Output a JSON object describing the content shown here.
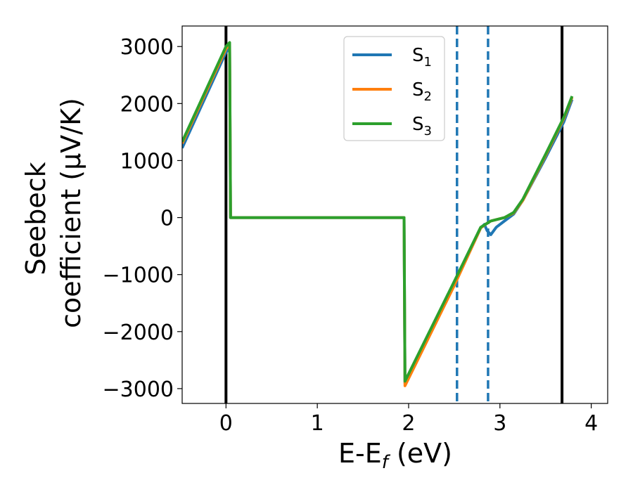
{
  "chart_data": {
    "type": "line",
    "title": "",
    "xlabel": {
      "main": "E-E",
      "sub": "f",
      "suffix": " (eV)"
    },
    "ylabel": {
      "line1": "Seebeck",
      "line2": "coefficient  (μV/K)"
    },
    "xlim": [
      -0.48,
      4.18
    ],
    "ylim": [
      -3260,
      3360
    ],
    "xticks": [
      0,
      1,
      2,
      3,
      4
    ],
    "xtick_labels": [
      "0",
      "1",
      "2",
      "3",
      "4"
    ],
    "yticks": [
      -3000,
      -2000,
      -1000,
      0,
      1000,
      2000,
      3000
    ],
    "ytick_labels": [
      "−3000",
      "−2000",
      "−1000",
      "0",
      "1000",
      "2000",
      "3000"
    ],
    "grid": false,
    "legend_position": "top-right",
    "series": [
      {
        "name": "S",
        "name_sub": "1",
        "color": "#1f77b4",
        "points": [
          [
            -0.48,
            1220
          ],
          [
            0.0,
            2900
          ],
          [
            0.04,
            2960
          ],
          [
            0.05,
            0
          ],
          [
            1.95,
            0
          ],
          [
            1.96,
            -2900
          ],
          [
            2.5,
            -1170
          ],
          [
            2.79,
            -180
          ],
          [
            2.83,
            -120
          ],
          [
            2.86,
            -230
          ],
          [
            2.9,
            -300
          ],
          [
            2.96,
            -170
          ],
          [
            3.05,
            -60
          ],
          [
            3.15,
            60
          ],
          [
            3.25,
            300
          ],
          [
            3.5,
            1050
          ],
          [
            3.7,
            1680
          ],
          [
            3.79,
            2070
          ]
        ]
      },
      {
        "name": "S",
        "name_sub": "2",
        "color": "#ff7f0e",
        "points": [
          [
            -0.48,
            1300
          ],
          [
            0.0,
            2960
          ],
          [
            0.04,
            3040
          ],
          [
            0.05,
            0
          ],
          [
            1.95,
            0
          ],
          [
            1.96,
            -2950
          ],
          [
            2.5,
            -1190
          ],
          [
            2.79,
            -180
          ],
          [
            2.85,
            -110
          ],
          [
            2.9,
            -60
          ],
          [
            3.05,
            0
          ],
          [
            3.15,
            80
          ],
          [
            3.25,
            300
          ],
          [
            3.5,
            1090
          ],
          [
            3.7,
            1740
          ],
          [
            3.79,
            2110
          ]
        ]
      },
      {
        "name": "S",
        "name_sub": "3",
        "color": "#2ca02c",
        "points": [
          [
            -0.48,
            1330
          ],
          [
            0.0,
            3000
          ],
          [
            0.04,
            3070
          ],
          [
            0.05,
            0
          ],
          [
            1.95,
            0
          ],
          [
            1.96,
            -2870
          ],
          [
            2.5,
            -1120
          ],
          [
            2.79,
            -170
          ],
          [
            2.85,
            -110
          ],
          [
            2.9,
            -60
          ],
          [
            3.05,
            0
          ],
          [
            3.15,
            90
          ],
          [
            3.25,
            320
          ],
          [
            3.5,
            1110
          ],
          [
            3.7,
            1760
          ],
          [
            3.79,
            2130
          ]
        ]
      }
    ],
    "vlines": [
      {
        "x": 0.0,
        "color": "#000000",
        "style": "solid"
      },
      {
        "x": 3.68,
        "color": "#000000",
        "style": "solid"
      },
      {
        "x": 2.53,
        "color": "#1f77b4",
        "style": "dashed"
      },
      {
        "x": 2.87,
        "color": "#1f77b4",
        "style": "dashed"
      }
    ]
  }
}
